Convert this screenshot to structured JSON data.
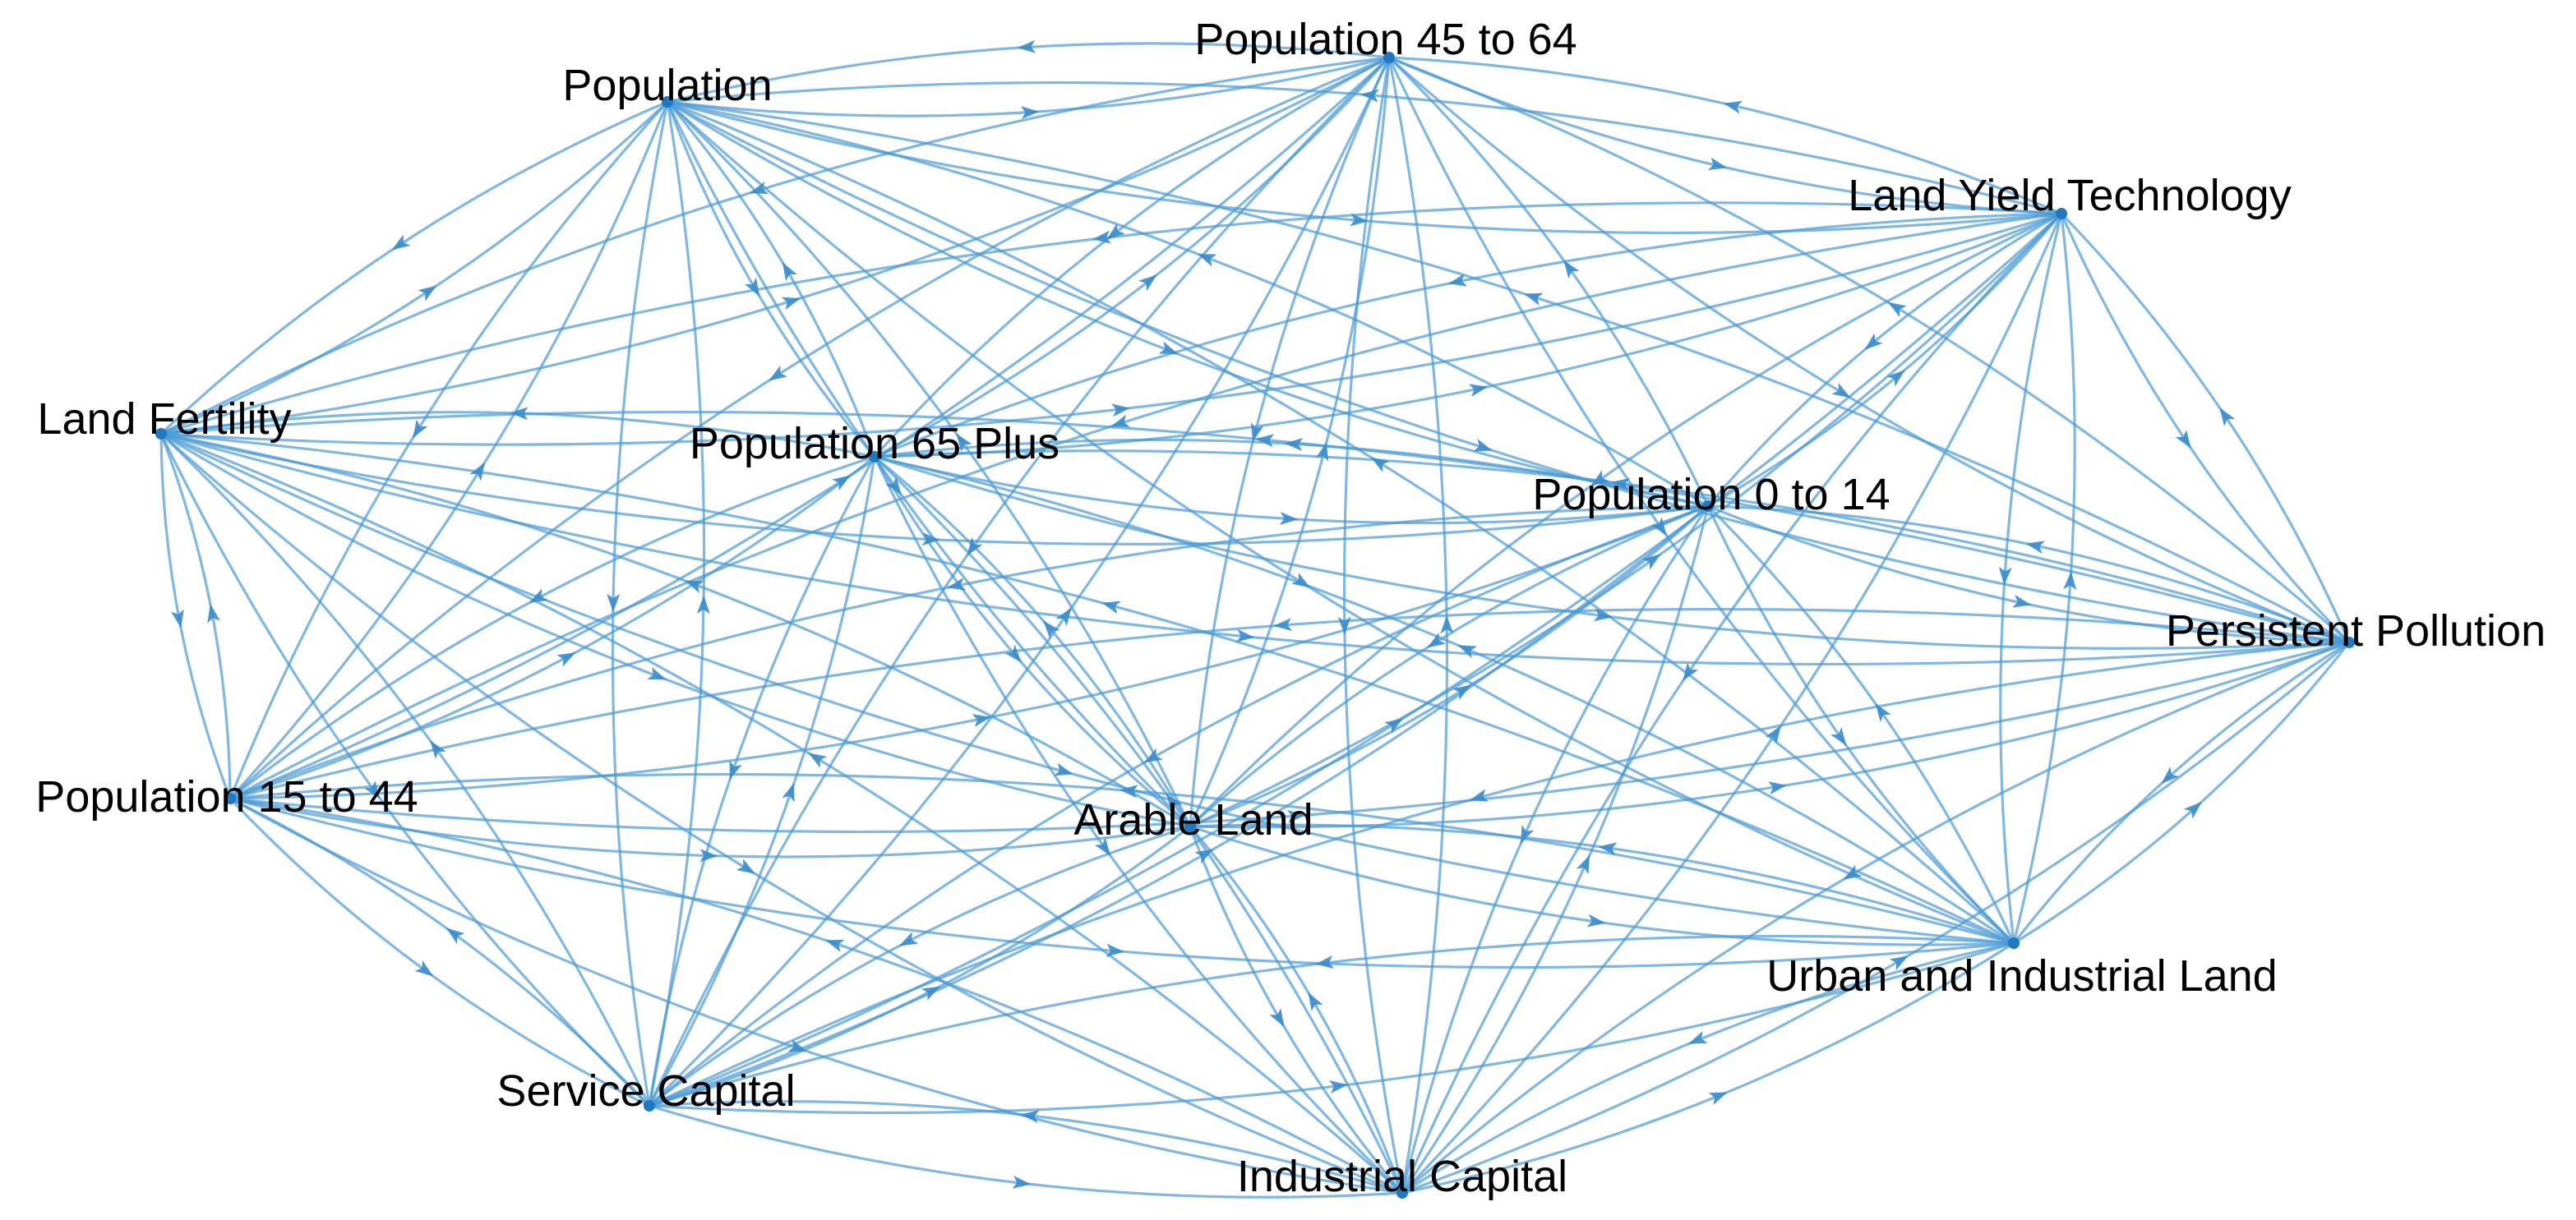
{
  "diagram": {
    "nodes": [
      {
        "id": "population",
        "label": "Population"
      },
      {
        "id": "pop45",
        "label": "Population 45 to 64"
      },
      {
        "id": "landyield",
        "label": "Land Yield Technology"
      },
      {
        "id": "landfert",
        "label": "Land Fertility"
      },
      {
        "id": "pop65",
        "label": "Population 65 Plus"
      },
      {
        "id": "pop014",
        "label": "Population 0 to 14"
      },
      {
        "id": "pollution",
        "label": "Persistent Pollution"
      },
      {
        "id": "pop1544",
        "label": "Population 15 to 44"
      },
      {
        "id": "arable",
        "label": "Arable Land"
      },
      {
        "id": "urban",
        "label": "Urban and Industrial Land"
      },
      {
        "id": "service",
        "label": "Service Capital"
      },
      {
        "id": "industrial",
        "label": "Industrial Capital"
      }
    ],
    "colors": {
      "edge": "#4a9ad4",
      "arrow": "#3a8ccc",
      "node": "#1f78c0",
      "label": "#000000"
    }
  }
}
